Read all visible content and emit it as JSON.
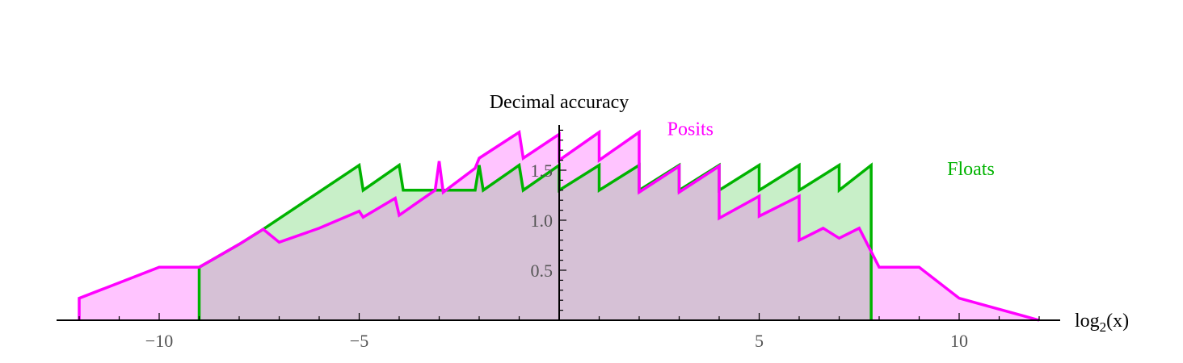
{
  "chart_data": {
    "type": "area",
    "title": "",
    "xlabel": "log",
    "xlabel_subscript": "2",
    "xlabel_suffix": "(x)",
    "ylabel": "Decimal accuracy",
    "xlim": [
      -12.5,
      12.5
    ],
    "ylim": [
      0,
      2.0
    ],
    "x_ticks": [
      -10,
      -5,
      5,
      10
    ],
    "x_tick_labels": [
      "−10",
      "−5",
      "5",
      "10"
    ],
    "y_ticks": [
      0.5,
      1.0,
      1.5
    ],
    "y_tick_labels": [
      "0.5",
      "1.0",
      "1.5"
    ],
    "grid": false,
    "colors": {
      "posits_line": "#ff00ff",
      "posits_fill": "#ffc4ff",
      "floats_line": "#00b300",
      "floats_fill": "#c8efc8",
      "overlap_fill": "#d6c1d6"
    },
    "series": [
      {
        "name": "Posits",
        "label_pos": [
          2.7,
          1.85
        ],
        "points": [
          [
            -12,
            0.22
          ],
          [
            -10,
            0.53
          ],
          [
            -9,
            0.53
          ],
          [
            -8,
            0.76
          ],
          [
            -7.4,
            0.91
          ],
          [
            -7,
            0.78
          ],
          [
            -6,
            0.92
          ],
          [
            -5,
            1.09
          ],
          [
            -4.9,
            1.03
          ],
          [
            -4.1,
            1.22
          ],
          [
            -4.0,
            1.05
          ],
          [
            -3.1,
            1.3
          ],
          [
            -3.0,
            1.59
          ],
          [
            -2.9,
            1.28
          ],
          [
            -2.1,
            1.52
          ],
          [
            -2.0,
            1.62
          ],
          [
            -1.0,
            1.88
          ],
          [
            -0.9,
            1.62
          ],
          [
            0,
            1.86
          ],
          [
            0.0,
            1.6
          ],
          [
            1.0,
            1.88
          ],
          [
            1.0,
            1.6
          ],
          [
            2.0,
            1.88
          ],
          [
            2.0,
            1.28
          ],
          [
            3.0,
            1.54
          ],
          [
            3.0,
            1.28
          ],
          [
            4.0,
            1.54
          ],
          [
            4.0,
            1.02
          ],
          [
            5.0,
            1.24
          ],
          [
            5.0,
            1.04
          ],
          [
            6.0,
            1.24
          ],
          [
            6.0,
            0.8
          ],
          [
            6.6,
            0.92
          ],
          [
            7.0,
            0.82
          ],
          [
            7.5,
            0.92
          ],
          [
            8.0,
            0.53
          ],
          [
            9.0,
            0.53
          ],
          [
            10.0,
            0.22
          ],
          [
            12.0,
            0.0
          ]
        ]
      },
      {
        "name": "Floats",
        "label_pos": [
          9.7,
          1.45
        ],
        "x_start": -9,
        "x_end": 7.8,
        "points": [
          [
            -9,
            0.53
          ],
          [
            -8,
            0.76
          ],
          [
            -7.4,
            0.91
          ],
          [
            -5.0,
            1.55
          ],
          [
            -4.9,
            1.3
          ],
          [
            -4.0,
            1.55
          ],
          [
            -3.9,
            1.3
          ],
          [
            -3.0,
            1.3
          ],
          [
            -2.1,
            1.3
          ],
          [
            -2.0,
            1.55
          ],
          [
            -1.9,
            1.3
          ],
          [
            -1.0,
            1.55
          ],
          [
            -0.9,
            1.3
          ],
          [
            0,
            1.55
          ],
          [
            0.0,
            1.3
          ],
          [
            1.0,
            1.55
          ],
          [
            1.0,
            1.3
          ],
          [
            2.0,
            1.55
          ],
          [
            2.0,
            1.3
          ],
          [
            3.0,
            1.55
          ],
          [
            3.0,
            1.3
          ],
          [
            4.0,
            1.55
          ],
          [
            4.0,
            1.3
          ],
          [
            5.0,
            1.55
          ],
          [
            5.0,
            1.3
          ],
          [
            6.0,
            1.55
          ],
          [
            6.0,
            1.3
          ],
          [
            7.0,
            1.55
          ],
          [
            7.0,
            1.3
          ],
          [
            7.8,
            1.55
          ]
        ]
      }
    ]
  }
}
